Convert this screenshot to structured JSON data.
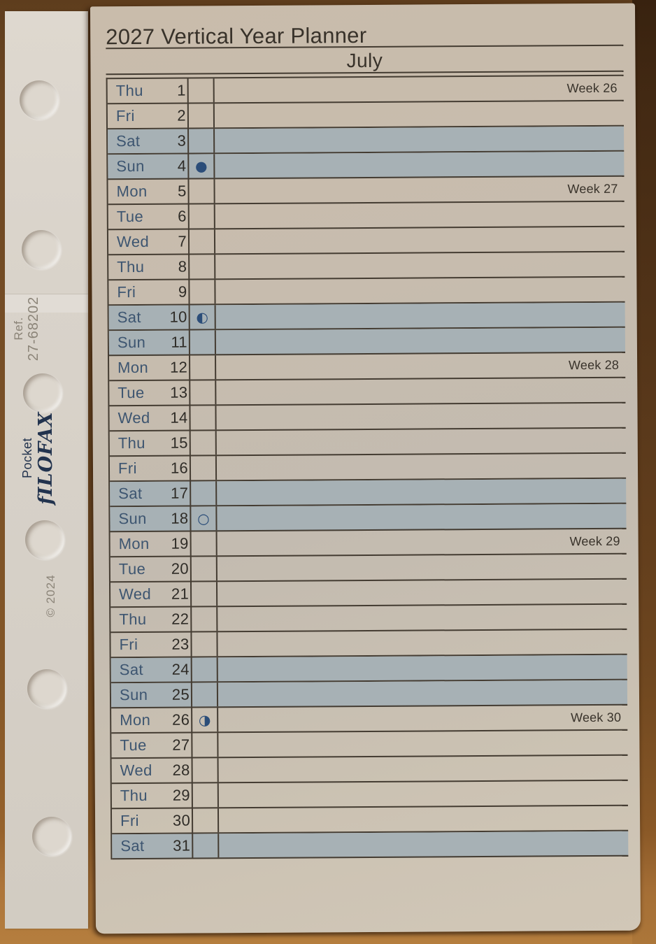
{
  "page": {
    "title": "2027 Vertical Year Planner",
    "month": "July"
  },
  "sidebar": {
    "ref_label": "Ref.",
    "ref_number": "27-68202",
    "size_label": "Pocket",
    "brand": "fILOFAX",
    "copyright": "© 2024"
  },
  "colors": {
    "paper": "#c9bcab",
    "weekend": "#a7b1b5",
    "line": "#443c32",
    "ink": "#38322a",
    "dayink": "#3d5570",
    "numink": "#2e2b26",
    "moonink": "#2b4d79"
  },
  "planner": {
    "rows": [
      {
        "day": "Thu",
        "date": "1",
        "weekend": false,
        "moon": "",
        "week": "Week 26"
      },
      {
        "day": "Fri",
        "date": "2",
        "weekend": false,
        "moon": "",
        "week": ""
      },
      {
        "day": "Sat",
        "date": "3",
        "weekend": true,
        "moon": "",
        "week": ""
      },
      {
        "day": "Sun",
        "date": "4",
        "weekend": true,
        "moon": "●",
        "week": ""
      },
      {
        "day": "Mon",
        "date": "5",
        "weekend": false,
        "moon": "",
        "week": "Week 27"
      },
      {
        "day": "Tue",
        "date": "6",
        "weekend": false,
        "moon": "",
        "week": ""
      },
      {
        "day": "Wed",
        "date": "7",
        "weekend": false,
        "moon": "",
        "week": ""
      },
      {
        "day": "Thu",
        "date": "8",
        "weekend": false,
        "moon": "",
        "week": ""
      },
      {
        "day": "Fri",
        "date": "9",
        "weekend": false,
        "moon": "",
        "week": ""
      },
      {
        "day": "Sat",
        "date": "10",
        "weekend": true,
        "moon": "◐",
        "week": ""
      },
      {
        "day": "Sun",
        "date": "11",
        "weekend": true,
        "moon": "",
        "week": ""
      },
      {
        "day": "Mon",
        "date": "12",
        "weekend": false,
        "moon": "",
        "week": "Week 28"
      },
      {
        "day": "Tue",
        "date": "13",
        "weekend": false,
        "moon": "",
        "week": ""
      },
      {
        "day": "Wed",
        "date": "14",
        "weekend": false,
        "moon": "",
        "week": ""
      },
      {
        "day": "Thu",
        "date": "15",
        "weekend": false,
        "moon": "",
        "week": ""
      },
      {
        "day": "Fri",
        "date": "16",
        "weekend": false,
        "moon": "",
        "week": ""
      },
      {
        "day": "Sat",
        "date": "17",
        "weekend": true,
        "moon": "",
        "week": ""
      },
      {
        "day": "Sun",
        "date": "18",
        "weekend": true,
        "moon": "○",
        "week": ""
      },
      {
        "day": "Mon",
        "date": "19",
        "weekend": false,
        "moon": "",
        "week": "Week 29"
      },
      {
        "day": "Tue",
        "date": "20",
        "weekend": false,
        "moon": "",
        "week": ""
      },
      {
        "day": "Wed",
        "date": "21",
        "weekend": false,
        "moon": "",
        "week": ""
      },
      {
        "day": "Thu",
        "date": "22",
        "weekend": false,
        "moon": "",
        "week": ""
      },
      {
        "day": "Fri",
        "date": "23",
        "weekend": false,
        "moon": "",
        "week": ""
      },
      {
        "day": "Sat",
        "date": "24",
        "weekend": true,
        "moon": "",
        "week": ""
      },
      {
        "day": "Sun",
        "date": "25",
        "weekend": true,
        "moon": "",
        "week": ""
      },
      {
        "day": "Mon",
        "date": "26",
        "weekend": false,
        "moon": "◑",
        "week": "Week 30"
      },
      {
        "day": "Tue",
        "date": "27",
        "weekend": false,
        "moon": "",
        "week": ""
      },
      {
        "day": "Wed",
        "date": "28",
        "weekend": false,
        "moon": "",
        "week": ""
      },
      {
        "day": "Thu",
        "date": "29",
        "weekend": false,
        "moon": "",
        "week": ""
      },
      {
        "day": "Fri",
        "date": "30",
        "weekend": false,
        "moon": "",
        "week": ""
      },
      {
        "day": "Sat",
        "date": "31",
        "weekend": true,
        "moon": "",
        "week": ""
      }
    ]
  }
}
